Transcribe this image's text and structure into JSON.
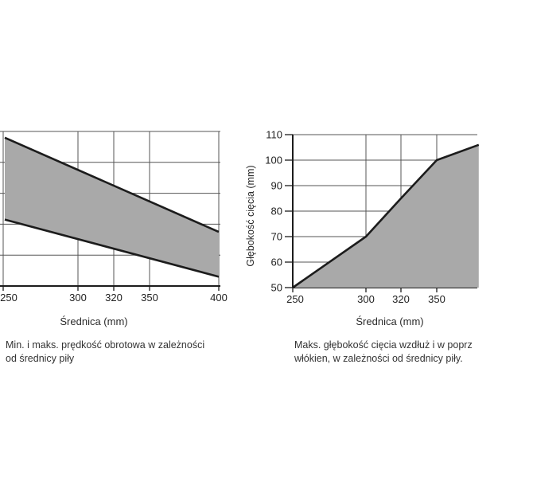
{
  "colors": {
    "background": "#ffffff",
    "area_fill": "#a9a9a9",
    "line": "#1c1c1c",
    "grid": "#555555",
    "axis": "#1c1c1c",
    "text": "#2a2a2a"
  },
  "chart_data": [
    {
      "id": "speed-vs-diameter",
      "type": "area",
      "title": "",
      "xlabel": "Średnica (mm)",
      "ylabel": "",
      "x_ticks": [
        250,
        300,
        320,
        350,
        400
      ],
      "y_axis_labels_visible": false,
      "y_gridline_count": 6,
      "y_unit": "fraction of plot height (y-axis tick labels cropped off at left image edge)",
      "legend": "none",
      "grid": "on",
      "band_fill": "#a9a9a9",
      "series": [
        {
          "name": "maks. prędkość obrotowa (upper limit)",
          "x": [
            250,
            400
          ],
          "y_fraction": [
            0.96,
            0.35
          ]
        },
        {
          "name": "min. prędkość obrotowa (lower limit)",
          "x": [
            250,
            400
          ],
          "y_fraction": [
            0.43,
            0.06
          ]
        }
      ],
      "caption_lines": [
        "Min. i maks. prędkość obrotowa w zależności",
        "od średnicy piły"
      ]
    },
    {
      "id": "cut-depth-vs-diameter",
      "type": "area",
      "title": "",
      "xlabel": "Średnica (mm)",
      "ylabel": "Głębokość cięcia (mm)",
      "x_ticks": [
        250,
        300,
        320,
        350
      ],
      "y_ticks": [
        50,
        60,
        70,
        80,
        90,
        100,
        110
      ],
      "ylim": [
        50,
        110
      ],
      "grid": "on",
      "legend": "none",
      "fill": "#a9a9a9",
      "points": [
        [
          250,
          50
        ],
        [
          300,
          70
        ],
        [
          320,
          85
        ],
        [
          350,
          100
        ],
        [
          380,
          106
        ]
      ],
      "note": "chart cropped by right image edge near 380 mm; 400 tick not visible",
      "caption_lines": [
        "Maks. głębokość cięcia wzdłuż i w poprz",
        "włókien, w zależności od średnicy piły."
      ]
    }
  ]
}
